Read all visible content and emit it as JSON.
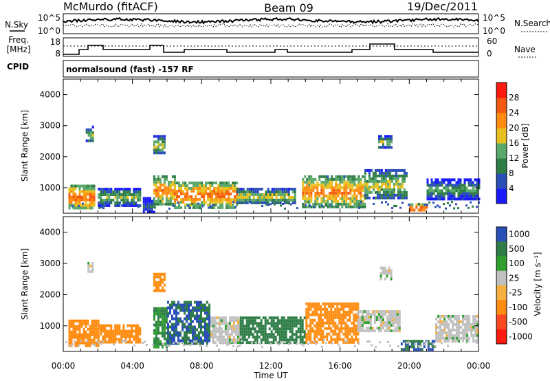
{
  "header": {
    "site": "McMurdo (fitACF)",
    "beam": "Beam 09",
    "date": "19/Dec/2011"
  },
  "top_panels": {
    "nsky_label": "N.Sky",
    "nsky_ticks": [
      "10^5",
      "10^0"
    ],
    "nsearch_label": "N.Search",
    "nsearch_ticks": [
      "10^5",
      "10^0"
    ],
    "freq_label_1": "Freq.",
    "freq_label_2": "[MHz]",
    "freq_ticks": [
      "18",
      "8"
    ],
    "nave_label": "Nave",
    "nave_ticks": [
      "60",
      "0"
    ],
    "cpid_label": "CPID",
    "cpid_text": "normalsound (fast) -157 RF"
  },
  "colors": {
    "power_scale": [
      "#1a1aff",
      "#2a4fb8",
      "#2e7d46",
      "#5aa86a",
      "#e8c020",
      "#ff8c10",
      "#f55a10",
      "#ff1a10"
    ],
    "velocity_scale": [
      "#ff1a10",
      "#ff4a20",
      "#ff8c10",
      "#f5b040",
      "#c0c0c0",
      "#2fa02f",
      "#2e7d46",
      "#2a4fb8"
    ]
  },
  "chart_data": [
    {
      "type": "heatmap",
      "panel": "power",
      "xlabel": "",
      "ylabel": "Slant Range [km]",
      "x_ticks": [
        "00:00",
        "04:00",
        "08:00",
        "12:00",
        "16:00",
        "20:00",
        "00:00"
      ],
      "xlim_hours": [
        0,
        24
      ],
      "y_ticks": [
        1000,
        2000,
        3000,
        4000
      ],
      "ylim": [
        180,
        4500
      ],
      "colorbar_label": "Power [dB]",
      "colorbar_ticks": [
        4,
        8,
        12,
        16,
        20,
        24,
        28
      ],
      "colorbar_range": [
        0,
        32
      ],
      "echo_bands": [
        {
          "t0": 0.3,
          "t1": 1.8,
          "r0": 350,
          "r1": 1100,
          "level": 26
        },
        {
          "t0": 2.0,
          "t1": 4.4,
          "r0": 450,
          "r1": 1000,
          "level": 16
        },
        {
          "t0": 4.6,
          "t1": 5.2,
          "r0": 200,
          "r1": 700,
          "level": 10
        },
        {
          "t0": 5.2,
          "t1": 6.4,
          "r0": 500,
          "r1": 1400,
          "level": 24
        },
        {
          "t0": 6.4,
          "t1": 10.0,
          "r0": 400,
          "r1": 1200,
          "level": 26
        },
        {
          "t0": 10.0,
          "t1": 13.4,
          "r0": 500,
          "r1": 1000,
          "level": 18
        },
        {
          "t0": 13.8,
          "t1": 17.4,
          "r0": 400,
          "r1": 1400,
          "level": 24
        },
        {
          "t0": 17.4,
          "t1": 19.8,
          "r0": 650,
          "r1": 1600,
          "level": 18
        },
        {
          "t0": 20.0,
          "t1": 21.0,
          "r0": 250,
          "r1": 500,
          "level": 28
        },
        {
          "t0": 21.0,
          "t1": 24.0,
          "r0": 650,
          "r1": 1300,
          "level": 14
        },
        {
          "t0": 1.3,
          "t1": 1.7,
          "r0": 2500,
          "r1": 3000,
          "level": 16
        },
        {
          "t0": 5.2,
          "t1": 5.8,
          "r0": 2100,
          "r1": 2700,
          "level": 18
        },
        {
          "t0": 18.2,
          "t1": 19.0,
          "r0": 2300,
          "r1": 2700,
          "level": 16
        }
      ]
    },
    {
      "type": "heatmap",
      "panel": "velocity",
      "xlabel": "Time UT",
      "ylabel": "Slant Range [km]",
      "x_ticks": [
        "00:00",
        "04:00",
        "08:00",
        "12:00",
        "16:00",
        "20:00",
        "00:00"
      ],
      "xlim_hours": [
        0,
        24
      ],
      "y_ticks": [
        1000,
        2000,
        3000,
        4000
      ],
      "ylim": [
        180,
        4500
      ],
      "colorbar_label": "Velocity [m s⁻¹]",
      "colorbar_ticks": [
        "1000",
        "500",
        "100",
        "25",
        "-25",
        "-100",
        "-500",
        "-1000"
      ],
      "echo_bands": [
        {
          "t0": 0.3,
          "t1": 2.0,
          "r0": 400,
          "r1": 1200,
          "vel": -100
        },
        {
          "t0": 2.0,
          "t1": 4.5,
          "r0": 450,
          "r1": 1050,
          "vel": -100
        },
        {
          "t0": 5.2,
          "t1": 6.0,
          "r0": 300,
          "r1": 1600,
          "vel": 100
        },
        {
          "t0": 6.0,
          "t1": 8.5,
          "r0": 450,
          "r1": 1800,
          "vel": 500
        },
        {
          "t0": 8.5,
          "t1": 10.2,
          "r0": 500,
          "r1": 1300,
          "vel": 0
        },
        {
          "t0": 10.2,
          "t1": 14.0,
          "r0": 500,
          "r1": 1300,
          "vel": 300
        },
        {
          "t0": 14.0,
          "t1": 17.0,
          "r0": 450,
          "r1": 1750,
          "vel": -100
        },
        {
          "t0": 17.0,
          "t1": 19.5,
          "r0": 800,
          "r1": 1500,
          "vel": 0
        },
        {
          "t0": 19.5,
          "t1": 21.5,
          "r0": 250,
          "r1": 550,
          "vel": 500
        },
        {
          "t0": 21.5,
          "t1": 24.0,
          "r0": 550,
          "r1": 1350,
          "vel": 0
        },
        {
          "t0": 1.4,
          "t1": 1.7,
          "r0": 2700,
          "r1": 3050,
          "vel": 0
        },
        {
          "t0": 5.2,
          "t1": 5.8,
          "r0": 2100,
          "r1": 2700,
          "vel": -100
        },
        {
          "t0": 18.3,
          "t1": 19.0,
          "r0": 2500,
          "r1": 2900,
          "vel": 0
        }
      ]
    }
  ]
}
